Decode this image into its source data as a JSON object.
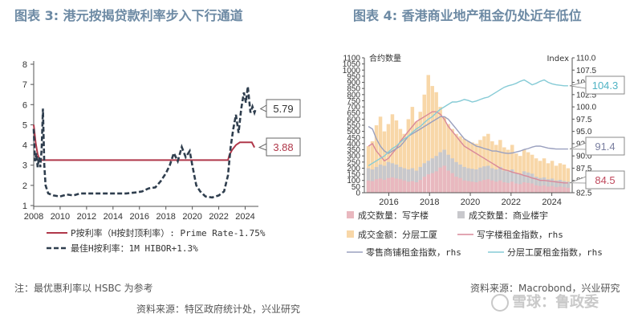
{
  "left": {
    "title": "图表 3: 港元按揭贷款利率步入下行通道",
    "note": "注：最优惠利率以 HSBC 为参考",
    "source": "资料来源：特区政府统计处，兴业研究"
  },
  "right": {
    "title": "图表 4: 香港商业地产租金仍处近年低位",
    "source": "资料来源：Macrobond，兴业研究"
  },
  "watermark": "雪球：鲁政委",
  "chart_data": [
    {
      "type": "line",
      "title": "图表 3: 港元按揭贷款利率步入下行通道",
      "x_ticks": [
        "2008",
        "2010",
        "2012",
        "2014",
        "2016",
        "2018",
        "2020",
        "2022",
        "2024"
      ],
      "y_ticks": [
        "1",
        "2",
        "3",
        "4",
        "5",
        "6",
        "7",
        "8"
      ],
      "xlim": [
        2008,
        2025
      ],
      "ylim": [
        1,
        8
      ],
      "grid": false,
      "legend_position": "bottom",
      "series": [
        {
          "name": "P按利率（H按封顶利率）: Prime Rate-1.75%",
          "color": "#b0384a",
          "style": "solid",
          "end_label": "3.88",
          "points": [
            [
              2008.0,
              5.0
            ],
            [
              2008.15,
              4.1
            ],
            [
              2008.3,
              3.55
            ],
            [
              2008.45,
              3.25
            ],
            [
              2009.0,
              3.25
            ],
            [
              2012.0,
              3.25
            ],
            [
              2016.0,
              3.25
            ],
            [
              2018.6,
              3.25
            ],
            [
              2019.0,
              3.25
            ],
            [
              2021.0,
              3.25
            ],
            [
              2022.7,
              3.25
            ],
            [
              2022.8,
              3.5
            ],
            [
              2023.0,
              3.75
            ],
            [
              2023.3,
              4.0
            ],
            [
              2023.6,
              4.13
            ],
            [
              2024.5,
              4.13
            ],
            [
              2024.7,
              3.88
            ]
          ]
        },
        {
          "name": "最佳H按利率：1M HIBOR+1.3%",
          "color": "#2f3e4e",
          "style": "dashed",
          "end_label": "5.79",
          "points": [
            [
              2008.0,
              4.8
            ],
            [
              2008.1,
              3.2
            ],
            [
              2008.2,
              3.6
            ],
            [
              2008.3,
              2.9
            ],
            [
              2008.4,
              3.4
            ],
            [
              2008.5,
              2.9
            ],
            [
              2008.6,
              3.8
            ],
            [
              2008.7,
              5.8
            ],
            [
              2008.8,
              3.0
            ],
            [
              2008.9,
              2.0
            ],
            [
              2009.1,
              1.6
            ],
            [
              2009.5,
              1.5
            ],
            [
              2010.0,
              1.45
            ],
            [
              2010.5,
              1.55
            ],
            [
              2011.0,
              1.5
            ],
            [
              2011.5,
              1.6
            ],
            [
              2012.0,
              1.6
            ],
            [
              2013.0,
              1.6
            ],
            [
              2014.0,
              1.6
            ],
            [
              2015.0,
              1.6
            ],
            [
              2015.7,
              1.65
            ],
            [
              2016.2,
              1.7
            ],
            [
              2016.7,
              1.85
            ],
            [
              2017.2,
              1.9
            ],
            [
              2017.6,
              2.2
            ],
            [
              2018.0,
              2.6
            ],
            [
              2018.3,
              3.0
            ],
            [
              2018.6,
              3.6
            ],
            [
              2018.9,
              3.2
            ],
            [
              2019.2,
              3.9
            ],
            [
              2019.5,
              3.4
            ],
            [
              2019.8,
              3.7
            ],
            [
              2020.0,
              3.0
            ],
            [
              2020.3,
              2.0
            ],
            [
              2020.6,
              1.7
            ],
            [
              2021.0,
              1.45
            ],
            [
              2021.5,
              1.4
            ],
            [
              2022.0,
              1.5
            ],
            [
              2022.4,
              1.7
            ],
            [
              2022.7,
              2.5
            ],
            [
              2022.9,
              3.9
            ],
            [
              2023.1,
              4.8
            ],
            [
              2023.3,
              5.5
            ],
            [
              2023.5,
              4.6
            ],
            [
              2023.7,
              5.8
            ],
            [
              2023.9,
              6.6
            ],
            [
              2024.05,
              6.1
            ],
            [
              2024.2,
              6.9
            ],
            [
              2024.4,
              5.6
            ],
            [
              2024.55,
              5.9
            ],
            [
              2024.7,
              5.6
            ],
            [
              2024.8,
              5.79
            ]
          ]
        }
      ]
    },
    {
      "type": "bar",
      "title": "图表 4: 香港商业地产租金仍处近年低位",
      "y_left_label": "合约数量",
      "y_right_label": "Index",
      "x_ticks": [
        "2016",
        "2018",
        "2020",
        "2022",
        "2024"
      ],
      "y_left_ticks": [
        "0",
        "50",
        "100",
        "150",
        "200",
        "250",
        "300",
        "350",
        "400",
        "450",
        "500",
        "550",
        "600",
        "650",
        "700",
        "750",
        "800",
        "850",
        "900",
        "950",
        "1000",
        "1050",
        "1100"
      ],
      "y_right_ticks": [
        "82.5",
        "85.0",
        "87.5",
        "90.0",
        "92.5",
        "95.0",
        "97.5",
        "100.0",
        "102.5",
        "105.0",
        "107.5",
        "110.0"
      ],
      "xlim": [
        2014.8,
        2025.0
      ],
      "ylim_left": [
        0,
        1100
      ],
      "ylim_right": [
        82.5,
        110.0
      ],
      "grid": false,
      "legend_position": "bottom",
      "series": [
        {
          "name": "成交数量：写字楼",
          "kind": "bar",
          "axis": "left",
          "color": "#e9b8bf",
          "values": [
            100,
            95,
            110,
            115,
            105,
            120,
            125,
            115,
            110,
            100,
            90,
            95,
            85,
            105,
            130,
            150,
            160,
            175,
            205,
            220,
            180,
            160,
            130,
            120,
            100,
            95,
            90,
            85,
            95,
            105,
            110,
            100,
            90,
            100,
            85,
            80,
            90,
            75,
            70,
            85,
            80,
            75,
            60,
            55,
            60,
            50,
            55,
            45,
            50,
            45,
            40
          ]
        },
        {
          "name": "成交数量：商业楼宇",
          "kind": "bar",
          "axis": "left",
          "color": "#c8c8cc",
          "values": [
            200,
            190,
            210,
            230,
            220,
            250,
            240,
            230,
            210,
            200,
            190,
            200,
            180,
            210,
            240,
            260,
            280,
            300,
            330,
            350,
            310,
            280,
            250,
            230,
            210,
            200,
            195,
            190,
            205,
            215,
            220,
            200,
            190,
            210,
            180,
            175,
            190,
            160,
            150,
            175,
            165,
            155,
            130,
            120,
            125,
            110,
            115,
            100,
            105,
            95,
            90
          ]
        },
        {
          "name": "成交金额：分层工厦",
          "kind": "bar",
          "axis": "left",
          "color": "#f8d7a8",
          "values": [
            380,
            420,
            550,
            620,
            500,
            560,
            640,
            590,
            520,
            480,
            600,
            700,
            580,
            660,
            800,
            960,
            870,
            820,
            700,
            620,
            560,
            520,
            480,
            460,
            440,
            420,
            410,
            400,
            430,
            460,
            480,
            420,
            390,
            430,
            370,
            350,
            390,
            320,
            300,
            350,
            330,
            310,
            280,
            260,
            280,
            240,
            260,
            220,
            240,
            230,
            200
          ]
        },
        {
          "name": "写字楼租金指数，rhs",
          "kind": "line",
          "axis": "right",
          "color": "#d9899a",
          "values": [
            92.0,
            92.5,
            91.0,
            90.0,
            89.0,
            89.5,
            90.5,
            91.5,
            93.0,
            94.0,
            95.0,
            96.0,
            97.0,
            97.5,
            98.0,
            98.5,
            99.0,
            99.0,
            98.5,
            97.5,
            96.0,
            95.0,
            94.0,
            93.0,
            92.0,
            91.5,
            91.0,
            90.5,
            90.0,
            89.5,
            89.0,
            88.5,
            88.0,
            87.5,
            87.2,
            87.0,
            86.7,
            86.5,
            86.3,
            86.0,
            85.8,
            85.5,
            85.3,
            85.0,
            85.0,
            84.9,
            84.8,
            84.7,
            84.6,
            84.5,
            84.5
          ]
        },
        {
          "name": "零售商铺租金指数，rhs",
          "kind": "line",
          "axis": "right",
          "color": "#9aa0bf",
          "values": [
            96.0,
            95.5,
            93.5,
            92.0,
            91.0,
            90.5,
            91.0,
            91.5,
            92.0,
            93.0,
            94.0,
            94.5,
            95.0,
            95.5,
            96.0,
            96.5,
            97.0,
            97.5,
            98.0,
            98.0,
            97.5,
            96.5,
            95.5,
            94.5,
            93.5,
            93.0,
            92.5,
            92.0,
            91.8,
            91.5,
            91.3,
            91.0,
            91.0,
            90.8,
            90.6,
            90.5,
            90.6,
            90.8,
            91.0,
            91.3,
            91.5,
            91.8,
            92.0,
            92.0,
            91.8,
            91.6,
            91.5,
            91.4,
            91.4,
            91.4,
            91.4
          ]
        },
        {
          "name": "分层工厦租金指数，rhs",
          "kind": "line",
          "axis": "right",
          "color": "#86cbd6",
          "values": [
            88.0,
            88.5,
            89.0,
            89.5,
            90.0,
            90.8,
            91.5,
            92.0,
            92.8,
            93.5,
            94.0,
            94.8,
            95.5,
            96.0,
            96.8,
            97.5,
            98.0,
            98.8,
            99.5,
            100.0,
            100.5,
            101.0,
            101.0,
            101.2,
            101.5,
            101.3,
            101.0,
            101.2,
            101.5,
            101.8,
            102.0,
            102.5,
            103.0,
            103.5,
            104.0,
            104.3,
            104.5,
            104.8,
            105.2,
            105.5,
            105.0,
            104.5,
            104.8,
            105.2,
            105.5,
            105.0,
            104.7,
            104.5,
            104.4,
            104.3,
            104.3
          ]
        }
      ],
      "end_labels": [
        "104.3",
        "91.4",
        "84.5"
      ]
    }
  ]
}
